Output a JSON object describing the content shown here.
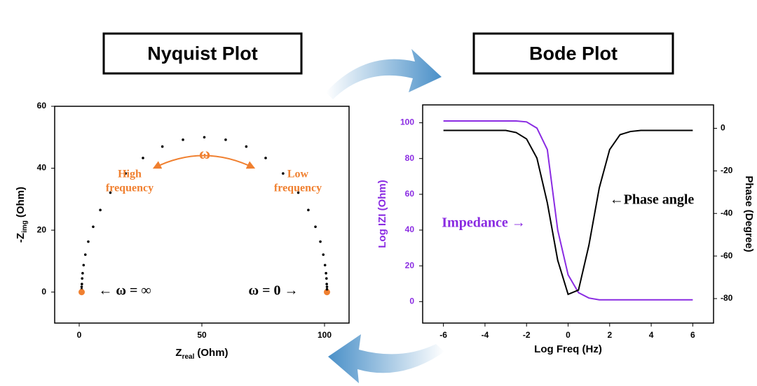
{
  "chart_data": [
    {
      "type": "scatter",
      "title": "Nyquist Plot",
      "x_label": {
        "main": "Z",
        "sub": "real",
        "unit": "(Ohm)"
      },
      "y_label": {
        "main": "-Z",
        "sub": "img",
        "unit": "(Ohm)"
      },
      "xlim": [
        -10,
        110
      ],
      "xticks": [
        0,
        50,
        100
      ],
      "ylim": [
        -10,
        60
      ],
      "yticks": [
        0,
        20,
        40,
        60
      ],
      "endpoint_color": "#f08030",
      "series": [
        {
          "color": "#000000",
          "x": [
            101,
            101.0,
            101.0,
            100.9,
            100.8,
            100.6,
            100.2,
            99.5,
            98.3,
            96.3,
            93.4,
            89.3,
            83.1,
            76.0,
            68.1,
            59.7,
            51.0,
            42.3,
            33.9,
            26.0,
            18.9,
            12.7,
            8.6,
            5.7,
            3.7,
            2.5,
            1.8,
            1.4,
            1.2,
            1.1,
            1.0,
            1.0,
            1
          ],
          "values": [
            0,
            0.9,
            1.7,
            2.6,
            4.4,
            6.1,
            8.7,
            12.1,
            16.3,
            21.1,
            26.5,
            32.1,
            38.3,
            43.3,
            47.0,
            49.2,
            50.0,
            49.2,
            47.0,
            43.3,
            38.3,
            32.1,
            26.5,
            21.1,
            16.3,
            12.1,
            8.7,
            6.1,
            4.4,
            2.6,
            1.7,
            0.9,
            0
          ]
        }
      ],
      "annotations": [
        {
          "text": "ω",
          "color": "#f08030"
        },
        {
          "text": "High",
          "color": "#f08030"
        },
        {
          "text": "frequency",
          "color": "#f08030"
        },
        {
          "text": "Low",
          "color": "#f08030"
        },
        {
          "text": "frequency",
          "color": "#f08030"
        },
        {
          "text": "← ω = ∞",
          "color": "#000000"
        },
        {
          "text": "ω = 0 →",
          "color": "#000000"
        }
      ]
    },
    {
      "type": "line",
      "title": "Bode Plot",
      "x_label": "Log Freq (Hz)",
      "y_label": "Log IZI (Ohm)",
      "y2_label": "Phase (Degree)",
      "xlim": [
        -7,
        7
      ],
      "xticks": [
        -6,
        -4,
        -2,
        0,
        2,
        4,
        6
      ],
      "ylim": [
        -12,
        110
      ],
      "yticks": [
        0,
        20,
        40,
        60,
        80,
        100
      ],
      "ytick_color": "#8a2be2",
      "y2lim": [
        -91.5,
        11
      ],
      "y2ticks": [
        0,
        -20,
        -40,
        -60,
        -80
      ],
      "x": [
        -6,
        -5.5,
        -5,
        -4.5,
        -4,
        -3.5,
        -3,
        -2.5,
        -2,
        -1.5,
        -1,
        -0.5,
        0,
        0.5,
        1,
        1.5,
        2,
        2.5,
        3,
        3.5,
        4,
        4.5,
        5,
        5.5,
        6
      ],
      "series": [
        {
          "color": "#8a2be2",
          "axis": "y",
          "values": [
            101,
            101,
            101,
            101,
            101,
            101,
            101,
            101,
            100.5,
            97,
            85,
            40,
            15,
            5,
            2,
            1,
            1,
            1,
            1,
            1,
            1,
            1,
            1,
            1,
            1
          ]
        },
        {
          "color": "#000000",
          "axis": "y2",
          "values": [
            -1,
            -1,
            -1,
            -1,
            -1,
            -1,
            -1,
            -2,
            -5,
            -14,
            -35,
            -62,
            -78,
            -76,
            -55,
            -28,
            -10,
            -3,
            -1.5,
            -1,
            -1,
            -1,
            -1,
            -1,
            -1
          ]
        }
      ],
      "annotations": [
        {
          "text": "Impedance →",
          "color": "#8a2be2"
        },
        {
          "text": "←Phase angle",
          "color": "#000000"
        }
      ]
    }
  ]
}
